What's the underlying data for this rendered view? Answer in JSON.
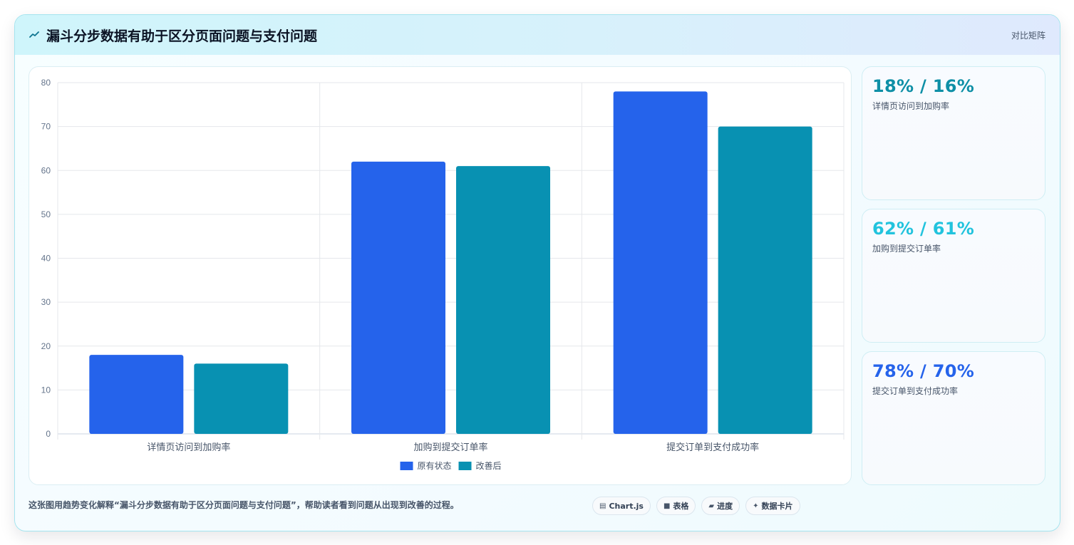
{
  "header": {
    "icon": "trend-icon",
    "title": "漏斗分步数据有助于区分页面问题与支付问题",
    "badge": "对比矩阵"
  },
  "colors": {
    "series_original": "#2563eb",
    "series_improved": "#0891b2",
    "stat_1": "#0e8fa6",
    "stat_2": "#22c3dd",
    "stat_3": "#2563eb"
  },
  "chart_data": {
    "type": "bar",
    "categories": [
      "详情页访问到加购率",
      "加购到提交订单率",
      "提交订单到支付成功率"
    ],
    "series": [
      {
        "name": "原有状态",
        "values": [
          18,
          62,
          78
        ],
        "color": "#2563eb"
      },
      {
        "name": "改善后",
        "values": [
          16,
          61,
          70
        ],
        "color": "#0891b2"
      }
    ],
    "ylim": [
      0,
      80
    ],
    "yticks": [
      0,
      10,
      20,
      30,
      40,
      50,
      60,
      70,
      80
    ],
    "grid": true,
    "legend": "bottom-center"
  },
  "stats": [
    {
      "value": "18% / 16%",
      "label": "详情页访问到加购率"
    },
    {
      "value": "62% / 61%",
      "label": "加购到提交订单率"
    },
    {
      "value": "78% / 70%",
      "label": "提交订单到支付成功率"
    }
  ],
  "caption": "这张图用趋势变化解释“漏斗分步数据有助于区分页面问题与支付问题”，帮助读者看到问题从出现到改善的过程。",
  "chips": [
    {
      "icon": "chart-icon",
      "label": "Chart.js"
    },
    {
      "icon": "table-icon",
      "label": "表格"
    },
    {
      "icon": "progress-icon",
      "label": "进度"
    },
    {
      "icon": "sparkle-icon",
      "label": "数据卡片"
    }
  ]
}
